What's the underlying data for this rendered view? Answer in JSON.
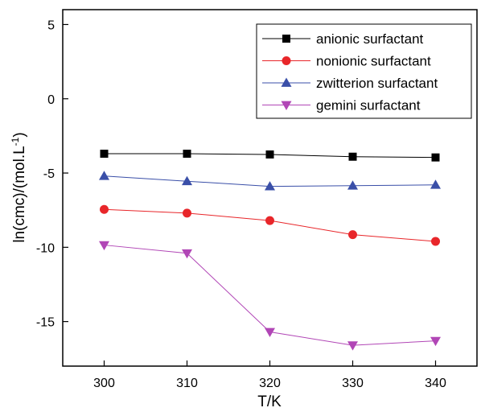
{
  "chart_data": {
    "type": "line",
    "title": "",
    "xlabel": "T/K",
    "ylabel_main": "ln(cmc)/(mol.L",
    "ylabel_sup": "-1",
    "ylabel_end": ")",
    "x": [
      300,
      310,
      320,
      330,
      340
    ],
    "xlim": [
      295,
      345
    ],
    "ylim": [
      -18,
      6
    ],
    "xticks": [
      300,
      310,
      320,
      330,
      340
    ],
    "yticks": [
      5,
      0,
      -5,
      -10,
      -15
    ],
    "grid": false,
    "legend_position": "top-right",
    "series": [
      {
        "name": "anionic surfactant",
        "marker": "square",
        "color": "#000000",
        "values": [
          -3.7,
          -3.7,
          -3.75,
          -3.9,
          -3.95
        ]
      },
      {
        "name": "nonionic surfactant",
        "marker": "circle",
        "color": "#e8262a",
        "values": [
          -7.45,
          -7.7,
          -8.2,
          -9.15,
          -9.6
        ]
      },
      {
        "name": "zwitterion surfactant",
        "marker": "triangle-up",
        "color": "#3a4fa8",
        "values": [
          -5.2,
          -5.55,
          -5.9,
          -5.85,
          -5.8
        ]
      },
      {
        "name": "gemini surfactant",
        "marker": "triangle-down",
        "color": "#b146b6",
        "values": [
          -9.85,
          -10.4,
          -15.7,
          -16.6,
          -16.3
        ]
      }
    ]
  }
}
